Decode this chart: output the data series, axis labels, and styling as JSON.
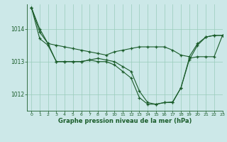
{
  "background_color": "#cce8e8",
  "grid_color": "#99ccbb",
  "line_color": "#1a5c2a",
  "xlabel": "Graphe pression niveau de la mer (hPa)",
  "xlim": [
    -0.5,
    23
  ],
  "ylim": [
    1011.5,
    1014.75
  ],
  "yticks": [
    1012,
    1013,
    1014
  ],
  "xticks": [
    0,
    1,
    2,
    3,
    4,
    5,
    6,
    7,
    8,
    9,
    10,
    11,
    12,
    13,
    14,
    15,
    16,
    17,
    18,
    19,
    20,
    21,
    22,
    23
  ],
  "series": [
    {
      "x": [
        0,
        1,
        2,
        3,
        4,
        5,
        6,
        7,
        8,
        9,
        10,
        11,
        12,
        13,
        14,
        15,
        16,
        17,
        18,
        19,
        20,
        21,
        22,
        23
      ],
      "y": [
        1014.65,
        1013.9,
        1013.55,
        1013.5,
        1013.45,
        1013.4,
        1013.35,
        1013.3,
        1013.25,
        1013.2,
        1013.3,
        1013.35,
        1013.4,
        1013.45,
        1013.45,
        1013.45,
        1013.45,
        1013.35,
        1013.2,
        1013.15,
        1013.55,
        1013.75,
        1013.8,
        1013.8
      ]
    },
    {
      "x": [
        0,
        1,
        2,
        3,
        4,
        5,
        6,
        7,
        8,
        9,
        10,
        11,
        12,
        13,
        14,
        15,
        16,
        17,
        18,
        19,
        20,
        21,
        22,
        23
      ],
      "y": [
        1014.65,
        1014.0,
        1013.55,
        1013.0,
        1013.0,
        1013.0,
        1013.0,
        1013.05,
        1013.0,
        1013.0,
        1012.9,
        1012.7,
        1012.5,
        1011.9,
        1011.7,
        1011.7,
        1011.75,
        1011.75,
        1012.2,
        1013.05,
        1013.5,
        1013.75,
        1013.8,
        1013.8
      ]
    },
    {
      "x": [
        0,
        1,
        2,
        3,
        4,
        5,
        6,
        7,
        8,
        9,
        10,
        11,
        12,
        13,
        14,
        15,
        16,
        17,
        18,
        19,
        20,
        21,
        22,
        23
      ],
      "y": [
        1014.65,
        1013.7,
        1013.5,
        1013.0,
        1013.0,
        1013.0,
        1013.0,
        1013.05,
        1013.1,
        1013.05,
        1013.0,
        1012.85,
        1012.7,
        1012.1,
        1011.75,
        1011.7,
        1011.75,
        1011.77,
        1012.2,
        1013.1,
        1013.15,
        1013.15,
        1013.15,
        1013.8
      ]
    }
  ]
}
